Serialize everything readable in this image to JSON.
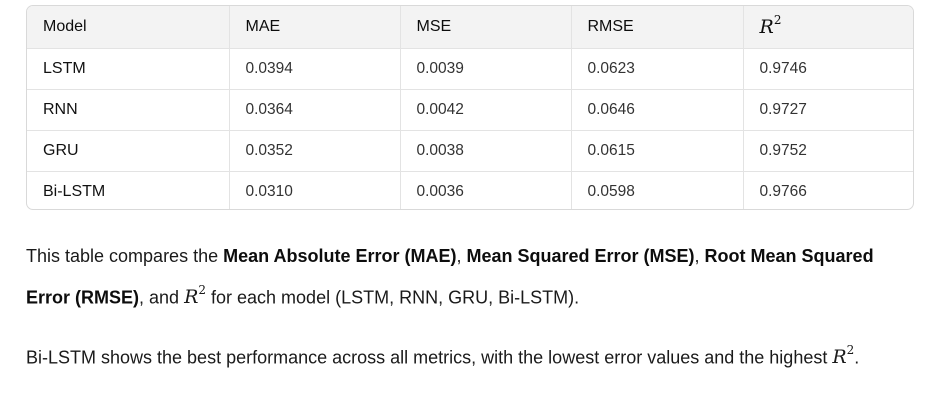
{
  "table": {
    "headers": [
      "Model",
      "MAE",
      "MSE",
      "RMSE",
      "R"
    ],
    "header_r2_sup": "2",
    "rows": [
      [
        "LSTM",
        "0.0394",
        "0.0039",
        "0.0623",
        "0.9746"
      ],
      [
        "RNN",
        "0.0364",
        "0.0042",
        "0.0646",
        "0.9727"
      ],
      [
        "GRU",
        "0.0352",
        "0.0038",
        "0.0615",
        "0.9752"
      ],
      [
        "Bi-LSTM",
        "0.0310",
        "0.0036",
        "0.0598",
        "0.9766"
      ]
    ]
  },
  "para1": {
    "t1": "This table compares the ",
    "b1": "Mean Absolute Error (MAE)",
    "t2": ", ",
    "b2": "Mean Squared Error (MSE)",
    "t3": ", ",
    "b3": "Root Mean Squared Error (RMSE)",
    "t4": ", and ",
    "math": "R",
    "sup": "2",
    "t5": " for each model (LSTM, RNN, GRU, Bi-LSTM)."
  },
  "para2": {
    "t1": "Bi-LSTM shows the best performance across all metrics, with the lowest error values and the highest ",
    "math": "R",
    "sup": "2",
    "t2": "."
  }
}
